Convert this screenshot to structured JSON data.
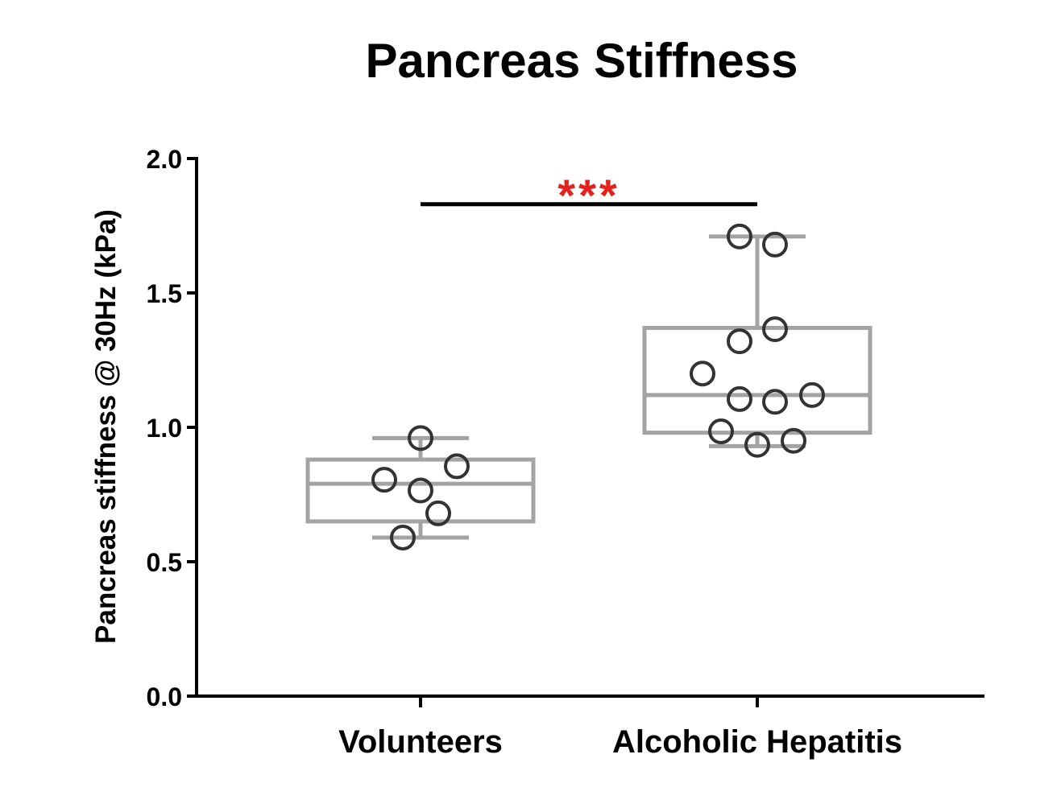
{
  "chart_data": {
    "type": "box",
    "title": "Pancreas Stiffness",
    "xlabel": "",
    "ylabel": "Pancreas stiffness @ 30Hz (kPa)",
    "ylim": [
      0,
      2.0
    ],
    "yticks": [
      0.0,
      0.5,
      1.0,
      1.5,
      2.0
    ],
    "ytick_labels": [
      "0.0",
      "0.5",
      "1.0",
      "1.5",
      "2.0"
    ],
    "grid": false,
    "categories": [
      "Volunteers",
      "Alcoholic Hepatitis"
    ],
    "series": [
      {
        "category": "Volunteers",
        "box": {
          "min": 0.59,
          "q1": 0.65,
          "median": 0.79,
          "q3": 0.88,
          "max": 0.96
        },
        "points": [
          0.96,
          0.855,
          0.805,
          0.765,
          0.68,
          0.59
        ]
      },
      {
        "category": "Alcoholic Hepatitis",
        "box": {
          "min": 0.93,
          "q1": 0.98,
          "median": 1.12,
          "q3": 1.37,
          "max": 1.71
        },
        "points": [
          1.71,
          1.68,
          1.365,
          1.32,
          1.2,
          1.105,
          1.095,
          1.12,
          0.985,
          0.95,
          0.935
        ]
      }
    ],
    "annotations": [
      {
        "text": "***",
        "from": "Volunteers",
        "to": "Alcoholic Hepatitis",
        "y": 1.83,
        "color": "#e8201c"
      }
    ],
    "colors": {
      "box": "#a3a3a3",
      "points": "#333333",
      "axis": "#000000",
      "significance": "#e8201c"
    }
  }
}
